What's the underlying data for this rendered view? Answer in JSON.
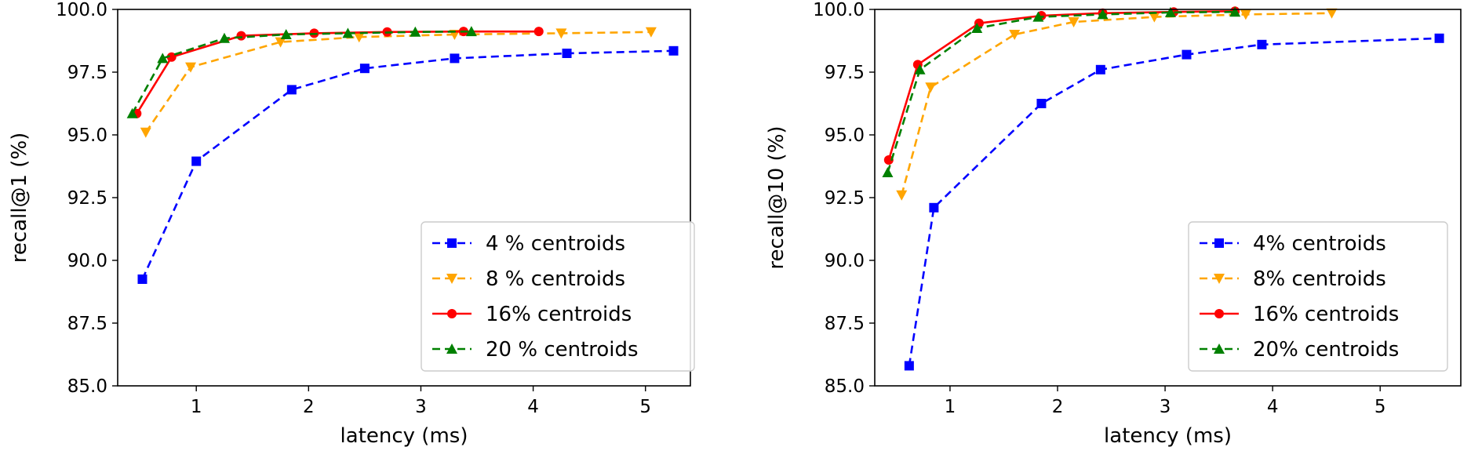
{
  "chart_data": [
    {
      "type": "line",
      "title": "",
      "xlabel": "latency (ms)",
      "ylabel": "recall@1 (%)",
      "xlim": [
        0.3,
        5.4
      ],
      "ylim": [
        85.0,
        100.0
      ],
      "xticks": [
        "1",
        "2",
        "3",
        "4",
        "5"
      ],
      "yticks": [
        "85.0",
        "87.5",
        "90.0",
        "92.5",
        "95.0",
        "97.5",
        "100.0"
      ],
      "grid": false,
      "legend_position": "lower-right",
      "series": [
        {
          "name": "4 % centroids",
          "color": "#0000ff",
          "linestyle": "dashed",
          "marker": "square",
          "x": [
            0.52,
            1.0,
            1.85,
            2.5,
            3.3,
            4.3,
            5.25
          ],
          "y": [
            89.25,
            93.95,
            96.8,
            97.65,
            98.05,
            98.25,
            98.35
          ]
        },
        {
          "name": "8 % centroids",
          "color": "#ffa500",
          "linestyle": "dashed",
          "marker": "triangle-down",
          "x": [
            0.55,
            0.95,
            1.75,
            2.45,
            3.3,
            4.25,
            5.05
          ],
          "y": [
            95.1,
            97.7,
            98.7,
            98.9,
            99.0,
            99.05,
            99.1
          ]
        },
        {
          "name": "16% centroids",
          "color": "#ff0000",
          "linestyle": "solid",
          "marker": "circle",
          "x": [
            0.47,
            0.78,
            1.4,
            2.05,
            2.7,
            3.38,
            4.05
          ],
          "y": [
            95.85,
            98.1,
            98.95,
            99.05,
            99.1,
            99.12,
            99.12
          ]
        },
        {
          "name": "20 % centroids",
          "color": "#008000",
          "linestyle": "dashed",
          "marker": "triangle-up",
          "x": [
            0.43,
            0.7,
            1.25,
            1.8,
            2.35,
            2.95,
            3.45
          ],
          "y": [
            95.85,
            98.05,
            98.85,
            99.0,
            99.05,
            99.1,
            99.12
          ]
        }
      ]
    },
    {
      "type": "line",
      "title": "",
      "xlabel": "latency (ms)",
      "ylabel": "recall@10 (%)",
      "xlim": [
        0.3,
        5.75
      ],
      "ylim": [
        85.0,
        100.0
      ],
      "xticks": [
        "1",
        "2",
        "3",
        "4",
        "5"
      ],
      "yticks": [
        "85.0",
        "87.5",
        "90.0",
        "92.5",
        "95.0",
        "97.5",
        "100.0"
      ],
      "grid": false,
      "legend_position": "lower-right",
      "series": [
        {
          "name": "4% centroids",
          "color": "#0000ff",
          "linestyle": "dashed",
          "marker": "square",
          "x": [
            0.62,
            0.85,
            1.85,
            2.4,
            3.2,
            3.9,
            5.55
          ],
          "y": [
            85.8,
            92.1,
            96.25,
            97.6,
            98.2,
            98.6,
            98.85
          ]
        },
        {
          "name": "8% centroids",
          "color": "#ffa500",
          "linestyle": "dashed",
          "marker": "triangle-down",
          "x": [
            0.55,
            0.82,
            1.6,
            2.15,
            2.9,
            3.75,
            4.55
          ],
          "y": [
            92.6,
            96.9,
            99.0,
            99.5,
            99.7,
            99.8,
            99.85
          ]
        },
        {
          "name": "16% centroids",
          "color": "#ff0000",
          "linestyle": "solid",
          "marker": "circle",
          "x": [
            0.43,
            0.7,
            1.27,
            1.85,
            2.42,
            3.08,
            3.65
          ],
          "y": [
            94.0,
            97.8,
            99.45,
            99.75,
            99.85,
            99.9,
            99.93
          ]
        },
        {
          "name": "20% centroids",
          "color": "#008000",
          "linestyle": "dashed",
          "marker": "triangle-up",
          "x": [
            0.42,
            0.72,
            1.25,
            1.82,
            2.42,
            3.05,
            3.65
          ],
          "y": [
            93.5,
            97.6,
            99.25,
            99.7,
            99.8,
            99.88,
            99.9
          ]
        }
      ]
    }
  ]
}
